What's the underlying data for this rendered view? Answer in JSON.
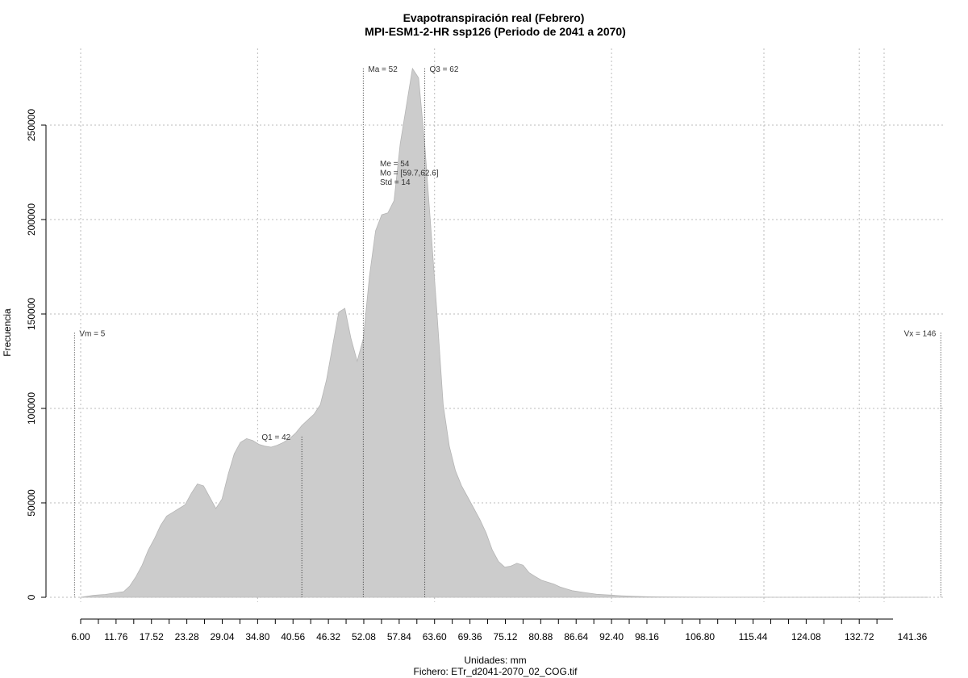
{
  "chart_data": {
    "type": "area",
    "title": "Evapotranspiración real (Febrero)",
    "subtitle": "MPI-ESM1-2-HR ssp126 (Periodo de 2041 a 2070)",
    "xlabel": "Unidades: mm",
    "file_caption": "Fichero: ETr_d2041-2070_02_COG.tif",
    "ylabel": "Frecuencia",
    "x_ticks": [
      "6.00",
      "11.76",
      "17.52",
      "23.28",
      "29.04",
      "34.80",
      "40.56",
      "46.32",
      "52.08",
      "57.84",
      "63.60",
      "69.36",
      "75.12",
      "80.88",
      "86.64",
      "92.40",
      "98.16",
      "106.80",
      "115.44",
      "124.08",
      "132.72",
      "141.36"
    ],
    "y_ticks": [
      "0",
      "50000",
      "100000",
      "150000",
      "200000",
      "250000"
    ],
    "xlim": [
      4,
      148
    ],
    "ylim": [
      0,
      280000
    ],
    "grid": true,
    "fill_color": "#cccccc",
    "grid_color": "#bbbbbb",
    "x": [
      6,
      8,
      10,
      12,
      13,
      14,
      15,
      16,
      17,
      18,
      19,
      20,
      21,
      22,
      23,
      24,
      25,
      26,
      27,
      28,
      29,
      30,
      31,
      32,
      33,
      34,
      35,
      36,
      37,
      38,
      39,
      40,
      41,
      42,
      43,
      44,
      45,
      46,
      47,
      48,
      49,
      50,
      51,
      52,
      53,
      54,
      55,
      56,
      57,
      58,
      59,
      60,
      61,
      62,
      63,
      64,
      65,
      66,
      67,
      68,
      69,
      70,
      71,
      72,
      73,
      74,
      75,
      76,
      77,
      78,
      79,
      80,
      81,
      82,
      83,
      84,
      85,
      86,
      88,
      90,
      92,
      94,
      96,
      98,
      100,
      105,
      110,
      115,
      120,
      125,
      130,
      135,
      140,
      144
    ],
    "y": [
      0,
      1000,
      1500,
      2500,
      3000,
      6000,
      11000,
      17000,
      25000,
      31000,
      38000,
      43000,
      45000,
      47000,
      49000,
      55000,
      60000,
      59000,
      53000,
      47000,
      52000,
      65000,
      76000,
      82000,
      84000,
      83000,
      81000,
      80000,
      79500,
      80500,
      82000,
      84000,
      87000,
      91000,
      94000,
      97000,
      102000,
      115000,
      133000,
      151000,
      153000,
      137000,
      125000,
      137000,
      170000,
      194000,
      202500,
      203500,
      210000,
      240000,
      260000,
      280000,
      275000,
      240000,
      195000,
      150000,
      102000,
      80000,
      67000,
      59000,
      53000,
      47000,
      41000,
      34000,
      25000,
      19000,
      16000,
      16500,
      18000,
      17000,
      13000,
      11000,
      9000,
      8000,
      7000,
      5500,
      4500,
      3500,
      2500,
      1600,
      1200,
      800,
      500,
      300,
      200,
      100,
      50,
      30,
      20,
      10,
      5,
      3,
      2,
      0
    ],
    "vlines": [
      {
        "label": "Vm = 5",
        "x": 5,
        "top_value": 140000
      },
      {
        "label": "Q1 = 42",
        "x": 42,
        "top_value": 85000
      },
      {
        "label": "Ma = 52",
        "x": 52,
        "top_value": 280000
      },
      {
        "label": "Q3 = 62",
        "x": 62,
        "top_value": 280000
      },
      {
        "label": "Vx = 146",
        "x": 146,
        "top_value": 140000
      }
    ],
    "stats_lines": [
      "Me = 54",
      "Mo = [59.7,62.6]",
      "Std = 14"
    ]
  }
}
